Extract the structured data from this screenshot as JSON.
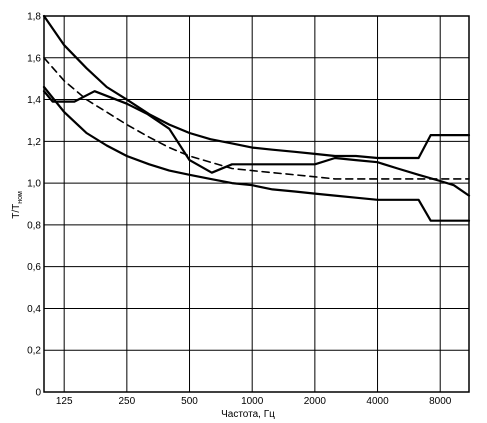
{
  "chart_data": {
    "type": "line",
    "xlabel": "Частота, Гц",
    "ylabel_main": "T/T",
    "ylabel_sub": "ном",
    "x_scale": "log2",
    "xlim": [
      100,
      11000
    ],
    "ylim": [
      0,
      1.8
    ],
    "x_ticks": [
      125,
      250,
      500,
      1000,
      2000,
      4000,
      8000
    ],
    "x_tick_labels": [
      "125",
      "250",
      "500",
      "1000",
      "2000",
      "4000",
      "8000"
    ],
    "y_ticks": [
      0,
      0.2,
      0.4,
      0.6,
      0.8,
      1.0,
      1.2,
      1.4,
      1.6,
      1.8
    ],
    "y_tick_labels": [
      "0",
      "0,2",
      "0,4",
      "0,6",
      "0,8",
      "1,0",
      "1,2",
      "1,4",
      "1,6",
      "1,8"
    ],
    "grid": true,
    "series": [
      {
        "style": "solid",
        "width": 2.2,
        "points": [
          [
            100,
            1.8
          ],
          [
            125,
            1.66
          ],
          [
            160,
            1.55
          ],
          [
            200,
            1.46
          ],
          [
            250,
            1.4
          ],
          [
            320,
            1.33
          ],
          [
            400,
            1.28
          ],
          [
            500,
            1.24
          ],
          [
            630,
            1.21
          ],
          [
            800,
            1.19
          ],
          [
            1000,
            1.17
          ],
          [
            1250,
            1.16
          ],
          [
            1600,
            1.15
          ],
          [
            2000,
            1.14
          ],
          [
            2500,
            1.13
          ],
          [
            3150,
            1.13
          ],
          [
            4000,
            1.12
          ],
          [
            5000,
            1.12
          ],
          [
            6300,
            1.12
          ],
          [
            7200,
            1.23
          ],
          [
            8000,
            1.23
          ],
          [
            10000,
            1.23
          ],
          [
            11000,
            1.23
          ]
        ]
      },
      {
        "style": "solid",
        "width": 2.2,
        "points": [
          [
            100,
            1.46
          ],
          [
            125,
            1.34
          ],
          [
            160,
            1.24
          ],
          [
            200,
            1.18
          ],
          [
            250,
            1.13
          ],
          [
            320,
            1.09
          ],
          [
            400,
            1.06
          ],
          [
            500,
            1.04
          ],
          [
            630,
            1.02
          ],
          [
            800,
            1.0
          ],
          [
            1000,
            0.99
          ],
          [
            1250,
            0.97
          ],
          [
            1600,
            0.96
          ],
          [
            2000,
            0.95
          ],
          [
            2500,
            0.94
          ],
          [
            3150,
            0.93
          ],
          [
            4000,
            0.92
          ],
          [
            5000,
            0.92
          ],
          [
            6300,
            0.92
          ],
          [
            7200,
            0.82
          ],
          [
            8000,
            0.82
          ],
          [
            10000,
            0.82
          ],
          [
            11000,
            0.82
          ]
        ]
      },
      {
        "style": "dashed",
        "width": 1.6,
        "points": [
          [
            100,
            1.6
          ],
          [
            125,
            1.49
          ],
          [
            160,
            1.4
          ],
          [
            200,
            1.34
          ],
          [
            250,
            1.28
          ],
          [
            320,
            1.22
          ],
          [
            400,
            1.17
          ],
          [
            500,
            1.13
          ],
          [
            630,
            1.1
          ],
          [
            800,
            1.07
          ],
          [
            1000,
            1.06
          ],
          [
            1250,
            1.05
          ],
          [
            1600,
            1.04
          ],
          [
            2000,
            1.03
          ],
          [
            2500,
            1.02
          ],
          [
            3150,
            1.02
          ],
          [
            4000,
            1.02
          ],
          [
            5000,
            1.02
          ],
          [
            6300,
            1.02
          ],
          [
            8000,
            1.02
          ],
          [
            10000,
            1.02
          ],
          [
            11000,
            1.02
          ]
        ]
      },
      {
        "style": "solid",
        "width": 2.2,
        "points": [
          [
            100,
            1.44
          ],
          [
            110,
            1.39
          ],
          [
            125,
            1.39
          ],
          [
            140,
            1.39
          ],
          [
            175,
            1.44
          ],
          [
            250,
            1.38
          ],
          [
            315,
            1.33
          ],
          [
            400,
            1.26
          ],
          [
            500,
            1.11
          ],
          [
            640,
            1.05
          ],
          [
            800,
            1.09
          ],
          [
            1000,
            1.09
          ],
          [
            1300,
            1.09
          ],
          [
            2000,
            1.09
          ],
          [
            2500,
            1.12
          ],
          [
            3150,
            1.11
          ],
          [
            4000,
            1.1
          ],
          [
            5000,
            1.07
          ],
          [
            6300,
            1.04
          ],
          [
            8000,
            1.01
          ],
          [
            9300,
            0.99
          ],
          [
            11000,
            0.94
          ]
        ]
      }
    ]
  }
}
